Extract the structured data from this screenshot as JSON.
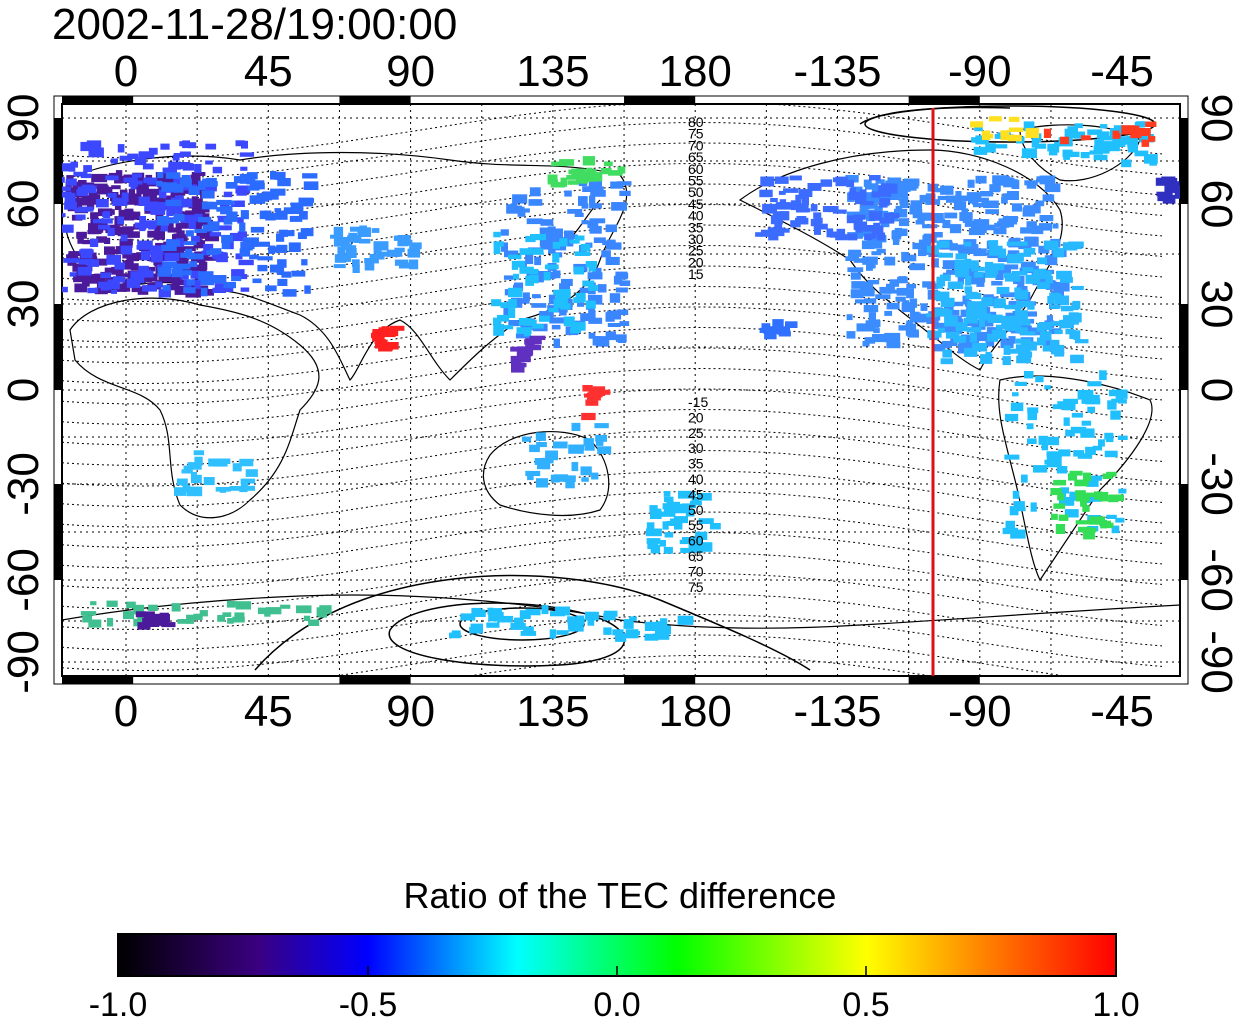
{
  "timestamp": "2002-11-28/19:00:00",
  "map": {
    "x_ticks": [
      "0",
      "45",
      "90",
      "135",
      "180",
      "-135",
      "-90",
      "-45"
    ],
    "y_ticks": [
      "90",
      "60",
      "30",
      "0",
      "-30",
      "-60",
      "-90"
    ],
    "meridian_marker": {
      "longitude": -105,
      "color": "#dd1111"
    },
    "contour_labels_north": [
      "80",
      "75",
      "70",
      "65",
      "60",
      "55",
      "50",
      "45",
      "40",
      "35",
      "30",
      "25",
      "20",
      "15"
    ],
    "contour_labels_south": [
      "-15",
      "20",
      "25",
      "30",
      "35",
      "40",
      "45",
      "50",
      "55",
      "60",
      "65",
      "70",
      "75"
    ]
  },
  "colorbar": {
    "title": "Ratio of the TEC difference",
    "tick_labels": [
      "-1.0",
      "-0.5",
      "0.0",
      "0.5",
      "1.0"
    ],
    "colors": [
      "#000000",
      "#3a0080",
      "#0000ff",
      "#00ffff",
      "#00ff00",
      "#ffff00",
      "#ff8000",
      "#ff0000"
    ]
  }
}
